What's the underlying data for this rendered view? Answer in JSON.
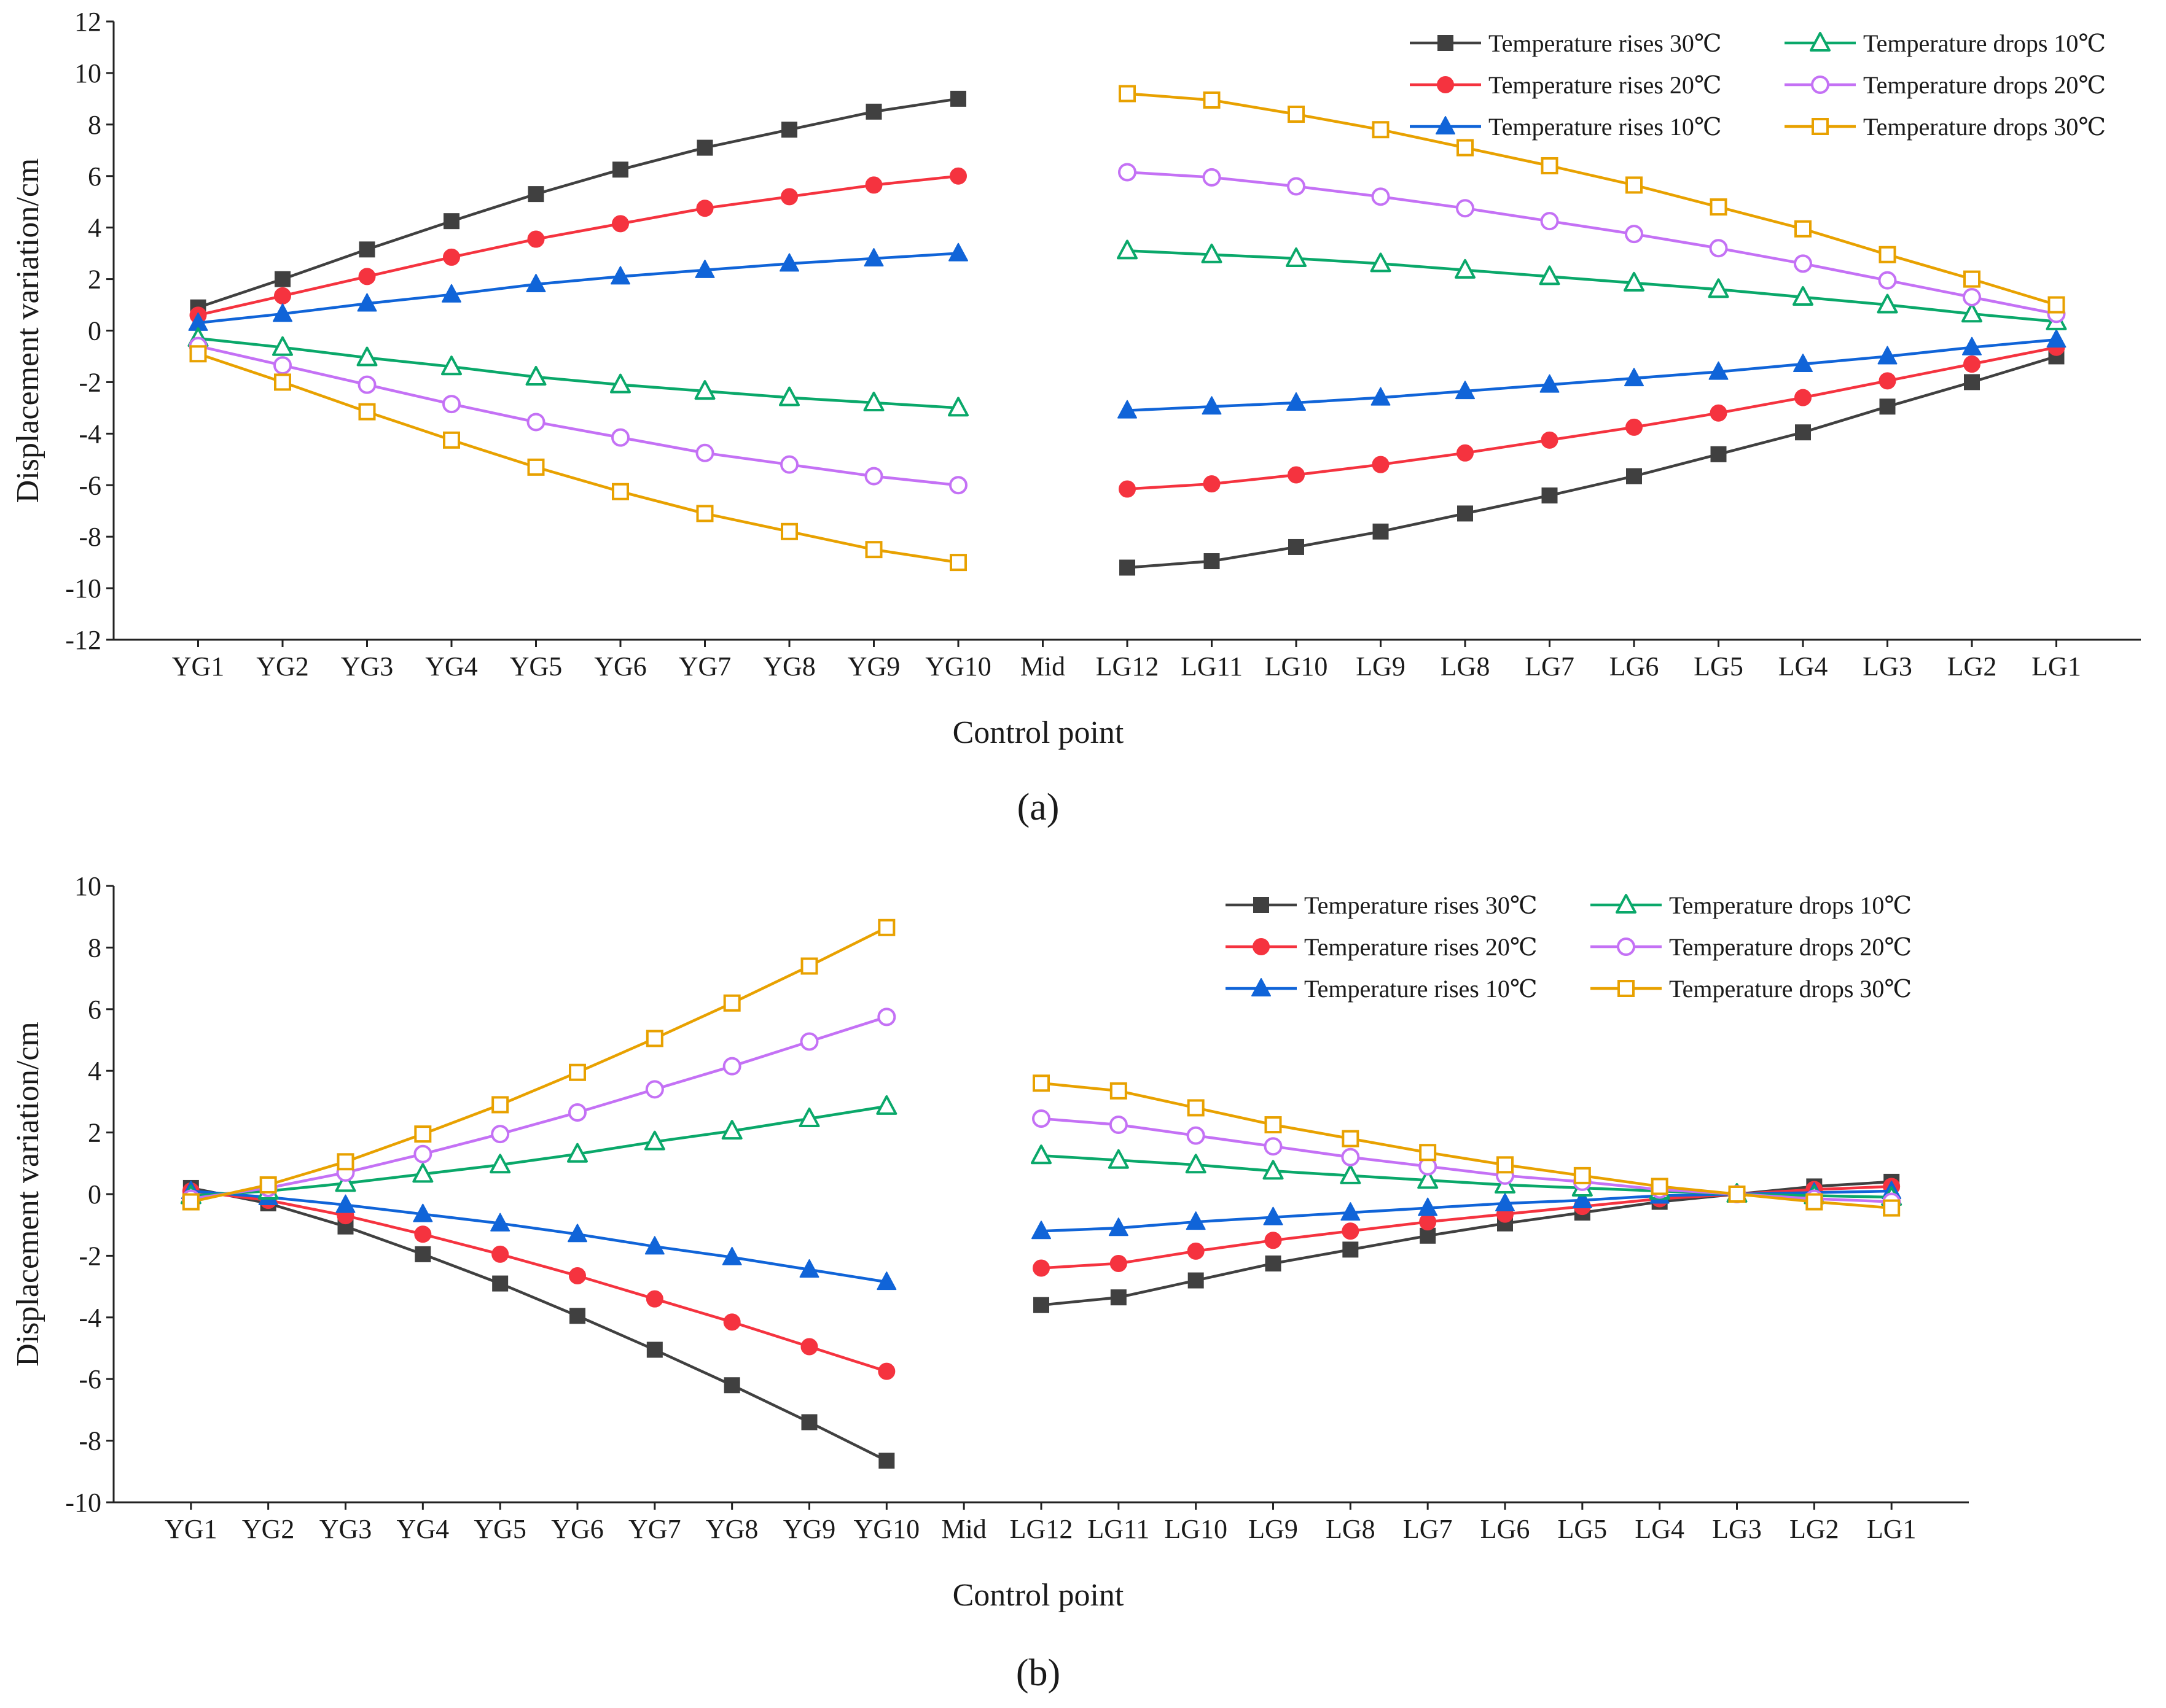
{
  "figure": {
    "panels": [
      "(a)",
      "(b)"
    ]
  },
  "chart_data": [
    {
      "type": "line",
      "label": "(a)",
      "xlabel": "Control point",
      "ylabel": "Displacement variation/cm",
      "ylim": [
        -12,
        12
      ],
      "yticks": [
        -12,
        -10,
        -8,
        -6,
        -4,
        -2,
        0,
        2,
        4,
        6,
        8,
        10,
        12
      ],
      "legend_position": "top-right",
      "categories": [
        "YG1",
        "YG2",
        "YG3",
        "YG4",
        "YG5",
        "YG6",
        "YG7",
        "YG8",
        "YG9",
        "YG10",
        "Mid",
        "LG12",
        "LG11",
        "LG10",
        "LG9",
        "LG8",
        "LG7",
        "LG6",
        "LG5",
        "LG4",
        "LG3",
        "LG2",
        "LG1"
      ],
      "series": [
        {
          "name": "Temperature rises 30℃",
          "color": "#404040",
          "marker": "square",
          "filled": true,
          "values": [
            0.9,
            2.0,
            3.15,
            4.25,
            5.3,
            6.25,
            7.1,
            7.8,
            8.5,
            9.0,
            null,
            -9.2,
            -8.95,
            -8.4,
            -7.8,
            -7.1,
            -6.4,
            -5.65,
            -4.8,
            -3.95,
            -2.95,
            -2.0,
            -1.0
          ]
        },
        {
          "name": "Temperature rises 20℃",
          "color": "#f5333f",
          "marker": "circle",
          "filled": true,
          "values": [
            0.6,
            1.35,
            2.1,
            2.85,
            3.55,
            4.15,
            4.75,
            5.2,
            5.65,
            6.0,
            null,
            -6.15,
            -5.95,
            -5.6,
            -5.2,
            -4.75,
            -4.25,
            -3.75,
            -3.2,
            -2.6,
            -1.95,
            -1.3,
            -0.65
          ]
        },
        {
          "name": "Temperature rises 10℃",
          "color": "#1064d8",
          "marker": "triangle",
          "filled": true,
          "values": [
            0.3,
            0.65,
            1.05,
            1.4,
            1.8,
            2.1,
            2.35,
            2.6,
            2.8,
            3.0,
            null,
            -3.1,
            -2.95,
            -2.8,
            -2.6,
            -2.35,
            -2.1,
            -1.85,
            -1.6,
            -1.3,
            -1.0,
            -0.65,
            -0.35
          ]
        },
        {
          "name": "Temperature drops 10℃",
          "color": "#0aa86a",
          "marker": "triangle",
          "filled": false,
          "values": [
            -0.3,
            -0.65,
            -1.05,
            -1.4,
            -1.8,
            -2.1,
            -2.35,
            -2.6,
            -2.8,
            -3.0,
            null,
            3.1,
            2.95,
            2.8,
            2.6,
            2.35,
            2.1,
            1.85,
            1.6,
            1.3,
            1.0,
            0.65,
            0.35
          ]
        },
        {
          "name": "Temperature drops 20℃",
          "color": "#c471f5",
          "marker": "circle",
          "filled": false,
          "values": [
            -0.6,
            -1.35,
            -2.1,
            -2.85,
            -3.55,
            -4.15,
            -4.75,
            -5.2,
            -5.65,
            -6.0,
            null,
            6.15,
            5.95,
            5.6,
            5.2,
            4.75,
            4.25,
            3.75,
            3.2,
            2.6,
            1.95,
            1.3,
            0.65
          ]
        },
        {
          "name": "Temperature drops 30℃",
          "color": "#e8a100",
          "marker": "square",
          "filled": false,
          "values": [
            -0.9,
            -2.0,
            -3.15,
            -4.25,
            -5.3,
            -6.25,
            -7.1,
            -7.8,
            -8.5,
            -9.0,
            null,
            9.2,
            8.95,
            8.4,
            7.8,
            7.1,
            6.4,
            5.65,
            4.8,
            3.95,
            2.95,
            2.0,
            1.0
          ]
        }
      ]
    },
    {
      "type": "line",
      "label": "(b)",
      "xlabel": "Control point",
      "ylabel": "Displacement variation/cm",
      "ylim": [
        -10,
        10
      ],
      "yticks": [
        -10,
        -8,
        -6,
        -4,
        -2,
        0,
        2,
        4,
        6,
        8,
        10
      ],
      "legend_position": "top-right",
      "categories": [
        "YG1",
        "YG2",
        "YG3",
        "YG4",
        "YG5",
        "YG6",
        "YG7",
        "YG8",
        "YG9",
        "YG10",
        "Mid",
        "LG12",
        "LG11",
        "LG10",
        "LG9",
        "LG8",
        "LG7",
        "LG6",
        "LG5",
        "LG4",
        "LG3",
        "LG2",
        "LG1"
      ],
      "series": [
        {
          "name": "Temperature rises 30℃",
          "color": "#404040",
          "marker": "square",
          "filled": true,
          "values": [
            0.2,
            -0.3,
            -1.05,
            -1.95,
            -2.9,
            -3.95,
            -5.05,
            -6.2,
            -7.4,
            -8.65,
            null,
            -3.6,
            -3.35,
            -2.8,
            -2.25,
            -1.8,
            -1.35,
            -0.95,
            -0.6,
            -0.25,
            0.0,
            0.25,
            0.4
          ]
        },
        {
          "name": "Temperature rises 20℃",
          "color": "#f5333f",
          "marker": "circle",
          "filled": true,
          "values": [
            0.1,
            -0.2,
            -0.7,
            -1.3,
            -1.95,
            -2.65,
            -3.4,
            -4.15,
            -4.95,
            -5.75,
            null,
            -2.4,
            -2.25,
            -1.85,
            -1.5,
            -1.2,
            -0.9,
            -0.65,
            -0.4,
            -0.15,
            0.0,
            0.15,
            0.25
          ]
        },
        {
          "name": "Temperature rises 10℃",
          "color": "#1064d8",
          "marker": "triangle",
          "filled": true,
          "values": [
            0.1,
            -0.1,
            -0.35,
            -0.65,
            -0.95,
            -1.3,
            -1.7,
            -2.05,
            -2.45,
            -2.85,
            null,
            -1.2,
            -1.1,
            -0.9,
            -0.75,
            -0.6,
            -0.45,
            -0.3,
            -0.2,
            -0.05,
            0.0,
            0.05,
            0.1
          ]
        },
        {
          "name": "Temperature drops 10℃",
          "color": "#0aa86a",
          "marker": "triangle",
          "filled": false,
          "values": [
            -0.05,
            0.1,
            0.35,
            0.65,
            0.95,
            1.3,
            1.7,
            2.05,
            2.45,
            2.85,
            null,
            1.25,
            1.1,
            0.95,
            0.75,
            0.6,
            0.45,
            0.3,
            0.2,
            0.1,
            0.0,
            -0.05,
            -0.1
          ]
        },
        {
          "name": "Temperature drops 20℃",
          "color": "#c471f5",
          "marker": "circle",
          "filled": false,
          "values": [
            -0.15,
            0.2,
            0.7,
            1.3,
            1.95,
            2.65,
            3.4,
            4.15,
            4.95,
            5.75,
            null,
            2.45,
            2.25,
            1.9,
            1.55,
            1.2,
            0.9,
            0.6,
            0.4,
            0.15,
            0.0,
            -0.15,
            -0.25
          ]
        },
        {
          "name": "Temperature drops 30℃",
          "color": "#e8a100",
          "marker": "square",
          "filled": false,
          "values": [
            -0.25,
            0.3,
            1.05,
            1.95,
            2.9,
            3.95,
            5.05,
            6.2,
            7.4,
            8.65,
            null,
            3.6,
            3.35,
            2.8,
            2.25,
            1.8,
            1.35,
            0.95,
            0.6,
            0.25,
            0.0,
            -0.25,
            -0.45
          ]
        }
      ]
    }
  ]
}
